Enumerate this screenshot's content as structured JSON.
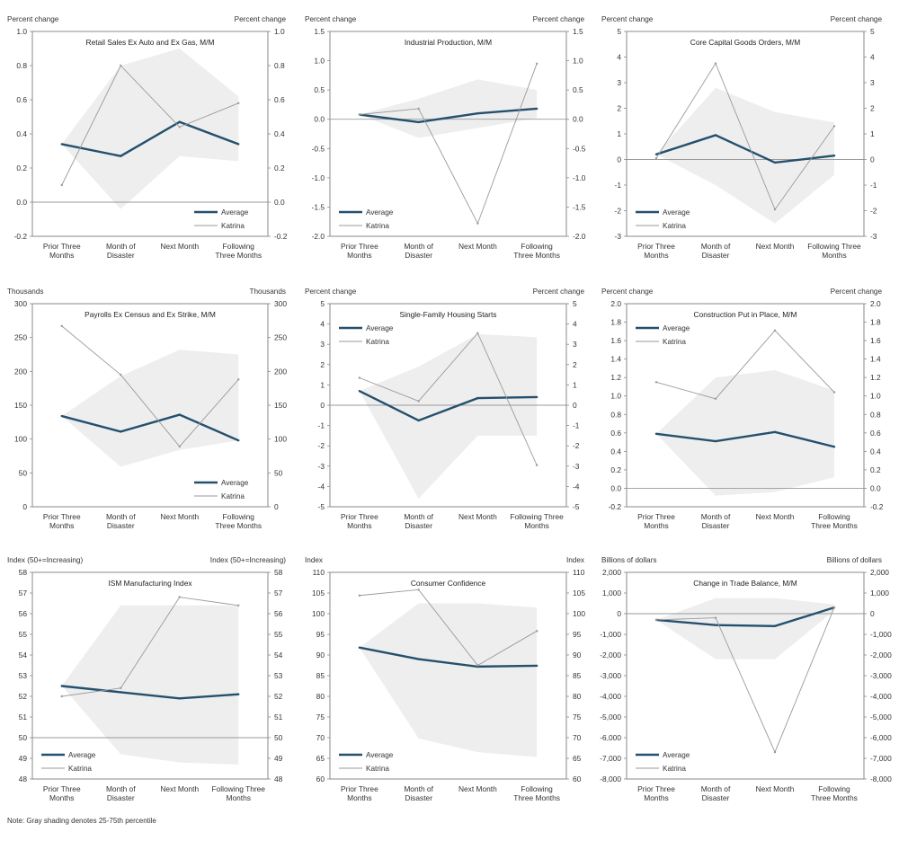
{
  "footnote": "Note: Gray shading denotes 25-75th percentile",
  "legend": {
    "average": "Average",
    "katrina": "Katrina"
  },
  "colors": {
    "average": "#24506e",
    "katrina": "#9a9a9a",
    "shade": "#eeeeee",
    "zero": "#9a9a9a"
  },
  "chart_data": [
    {
      "type": "line",
      "title": "Retail Sales Ex Auto and Ex Gas, M/M",
      "ylabel_left": "Percent change",
      "ylabel_right": "Percent change",
      "categories": [
        "Prior Three\nMonths",
        "Month of\nDisaster",
        "Next Month",
        "Following\nThree Months"
      ],
      "ylim": [
        -0.2,
        1.0
      ],
      "yticks": [
        -0.2,
        0.0,
        0.2,
        0.4,
        0.6,
        0.8,
        1.0
      ],
      "yticklabels": [
        "-0.2",
        "0.0",
        "0.2",
        "0.4",
        "0.6",
        "0.8",
        "1.0"
      ],
      "series": [
        {
          "name": "Average",
          "values": [
            0.34,
            0.27,
            0.47,
            0.34
          ]
        },
        {
          "name": "Katrina",
          "values": [
            0.1,
            0.8,
            0.44,
            0.58
          ]
        }
      ],
      "band": {
        "low": [
          0.34,
          -0.04,
          0.27,
          0.24
        ],
        "high": [
          0.34,
          0.8,
          0.9,
          0.62
        ]
      },
      "legend_position": "bottom-right"
    },
    {
      "type": "line",
      "title": "Industrial Production, M/M",
      "ylabel_left": "Percent change",
      "ylabel_right": "Percent change",
      "categories": [
        "Prior Three\nMonths",
        "Month of\nDisaster",
        "Next Month",
        "Following\nThree Months"
      ],
      "ylim": [
        -2.0,
        1.5
      ],
      "yticks": [
        -2.0,
        -1.5,
        -1.0,
        -0.5,
        0.0,
        0.5,
        1.0,
        1.5
      ],
      "yticklabels": [
        "-2.0",
        "-1.5",
        "-1.0",
        "-0.5",
        "0.0",
        "0.5",
        "1.0",
        "1.5"
      ],
      "series": [
        {
          "name": "Average",
          "values": [
            0.08,
            -0.05,
            0.1,
            0.18
          ]
        },
        {
          "name": "Katrina",
          "values": [
            0.08,
            0.18,
            -1.78,
            0.95
          ]
        }
      ],
      "band": {
        "low": [
          0.08,
          -0.32,
          -0.15,
          0.02
        ],
        "high": [
          0.08,
          0.35,
          0.68,
          0.5
        ]
      },
      "legend_position": "bottom-left"
    },
    {
      "type": "line",
      "title": "Core Capital Goods Orders, M/M",
      "ylabel_left": "Percent change",
      "ylabel_right": "Percent change",
      "categories": [
        "Prior Three\nMonths",
        "Month of\nDisaster",
        "Next Month",
        "Following Three\nMonths"
      ],
      "ylim": [
        -3,
        5
      ],
      "yticks": [
        -3,
        -2,
        -1,
        0,
        1,
        2,
        3,
        4,
        5
      ],
      "yticklabels": [
        "-3",
        "-2",
        "-1",
        "0",
        "1",
        "2",
        "3",
        "4",
        "5"
      ],
      "series": [
        {
          "name": "Average",
          "values": [
            0.2,
            0.95,
            -0.12,
            0.15
          ]
        },
        {
          "name": "Katrina",
          "values": [
            0.05,
            3.75,
            -1.95,
            1.3
          ]
        }
      ],
      "band": {
        "low": [
          0.2,
          -1.0,
          -2.5,
          -0.6
        ],
        "high": [
          0.2,
          2.8,
          1.85,
          1.45
        ]
      },
      "legend_position": "bottom-left"
    },
    {
      "type": "line",
      "title": "Payrolls Ex Census and Ex Strike, M/M",
      "ylabel_left": "Thousands",
      "ylabel_right": "Thousands",
      "categories": [
        "Prior Three\nMonths",
        "Month of\nDisaster",
        "Next Month",
        "Following\nThree Months"
      ],
      "ylim": [
        0,
        300
      ],
      "yticks": [
        0,
        50,
        100,
        150,
        200,
        250,
        300
      ],
      "yticklabels": [
        "0",
        "50",
        "100",
        "150",
        "200",
        "250",
        "300"
      ],
      "series": [
        {
          "name": "Average",
          "values": [
            134,
            111,
            136,
            98
          ]
        },
        {
          "name": "Katrina",
          "values": [
            267,
            195,
            89,
            188
          ]
        }
      ],
      "band": {
        "low": [
          134,
          59,
          84,
          98
        ],
        "high": [
          134,
          193,
          232,
          225
        ]
      },
      "legend_position": "bottom-right"
    },
    {
      "type": "line",
      "title": "Single-Family Housing Starts",
      "ylabel_left": "Percent change",
      "ylabel_right": "Percent change",
      "categories": [
        "Prior Three\nMonths",
        "Month of\nDisaster",
        "Next Month",
        "Following Three\nMonths"
      ],
      "ylim": [
        -5,
        5
      ],
      "yticks": [
        -5,
        -4,
        -3,
        -2,
        -1,
        0,
        1,
        2,
        3,
        4,
        5
      ],
      "yticklabels": [
        "-5",
        "-4",
        "-3",
        "-2",
        "-1",
        "0",
        "1",
        "2",
        "3",
        "4",
        "5"
      ],
      "series": [
        {
          "name": "Average",
          "values": [
            0.7,
            -0.75,
            0.35,
            0.4
          ]
        },
        {
          "name": "Katrina",
          "values": [
            1.35,
            0.2,
            3.55,
            -2.95
          ]
        }
      ],
      "band": {
        "low": [
          0.7,
          -4.6,
          -1.5,
          -1.5
        ],
        "high": [
          0.7,
          1.9,
          3.5,
          3.35
        ]
      },
      "legend_position": "top-left"
    },
    {
      "type": "line",
      "title": "Construction Put in Place, M/M",
      "ylabel_left": "Percent change",
      "ylabel_right": "Percent change",
      "categories": [
        "Prior Three\nMonths",
        "Month of\nDisaster",
        "Next Month",
        "Following\nThree Months"
      ],
      "ylim": [
        -0.2,
        2.0
      ],
      "yticks": [
        -0.2,
        0.0,
        0.2,
        0.4,
        0.6,
        0.8,
        1.0,
        1.2,
        1.4,
        1.6,
        1.8,
        2.0
      ],
      "yticklabels": [
        "-0.2",
        "0.0",
        "0.2",
        "0.4",
        "0.6",
        "0.8",
        "1.0",
        "1.2",
        "1.4",
        "1.6",
        "1.8",
        "2.0"
      ],
      "series": [
        {
          "name": "Average",
          "values": [
            0.59,
            0.51,
            0.61,
            0.45
          ]
        },
        {
          "name": "Katrina",
          "values": [
            1.15,
            0.97,
            1.71,
            1.04
          ]
        }
      ],
      "band": {
        "low": [
          0.59,
          -0.08,
          -0.04,
          0.12
        ],
        "high": [
          0.59,
          1.2,
          1.28,
          1.06
        ]
      },
      "legend_position": "top-left"
    },
    {
      "type": "line",
      "title": "ISM Manufacturing Index",
      "ylabel_left": "Index (50+=Increasing)",
      "ylabel_right": "Index (50+=Increasing)",
      "categories": [
        "Prior Three\nMonths",
        "Month of\nDisaster",
        "Next Month",
        "Following Three\nMonths"
      ],
      "ylim": [
        48,
        58
      ],
      "yticks": [
        48,
        49,
        50,
        51,
        52,
        53,
        54,
        55,
        56,
        57,
        58
      ],
      "yticklabels": [
        "48",
        "49",
        "50",
        "51",
        "52",
        "53",
        "54",
        "55",
        "56",
        "57",
        "58"
      ],
      "series": [
        {
          "name": "Average",
          "values": [
            52.5,
            52.2,
            51.9,
            52.1
          ]
        },
        {
          "name": "Katrina",
          "values": [
            52.0,
            52.4,
            56.8,
            56.4
          ]
        }
      ],
      "band": {
        "low": [
          52.5,
          49.2,
          48.8,
          48.7
        ],
        "high": [
          52.5,
          56.4,
          56.4,
          56.4
        ]
      },
      "hline": 50,
      "legend_position": "bottom-left"
    },
    {
      "type": "line",
      "title": "Consumer Confidence",
      "ylabel_left": "Index",
      "ylabel_right": "Index",
      "categories": [
        "Prior Three\nMonths",
        "Month of\nDisaster",
        "Next Month",
        "Following\nThree Months"
      ],
      "ylim": [
        60,
        110
      ],
      "yticks": [
        60,
        65,
        70,
        75,
        80,
        85,
        90,
        95,
        100,
        105,
        110
      ],
      "yticklabels": [
        "60",
        "65",
        "70",
        "75",
        "80",
        "85",
        "90",
        "95",
        "100",
        "105",
        "110"
      ],
      "series": [
        {
          "name": "Average",
          "values": [
            91.8,
            89.0,
            87.2,
            87.4
          ]
        },
        {
          "name": "Katrina",
          "values": [
            104.4,
            105.8,
            87.5,
            95.8
          ]
        }
      ],
      "band": {
        "low": [
          91.8,
          69.8,
          66.5,
          65.3
        ],
        "high": [
          91.8,
          102.5,
          102.5,
          101.5
        ]
      },
      "legend_position": "bottom-left"
    },
    {
      "type": "line",
      "title": "Change in Trade Balance, M/M",
      "ylabel_left": "Billions of dollars",
      "ylabel_right": "Billions of dollars",
      "categories": [
        "Prior Three\nMonths",
        "Month of\nDisaster",
        "Next Month",
        "Following\nThree Months"
      ],
      "ylim": [
        -8000,
        2000
      ],
      "yticks": [
        -8000,
        -7000,
        -6000,
        -5000,
        -4000,
        -3000,
        -2000,
        -1000,
        0,
        1000,
        2000
      ],
      "yticklabels": [
        "-8,000",
        "-7,000",
        "-6,000",
        "-5,000",
        "-4,000",
        "-3,000",
        "-2,000",
        "-1,000",
        "0",
        "1,000",
        "2,000"
      ],
      "series": [
        {
          "name": "Average",
          "values": [
            -300,
            -550,
            -600,
            300
          ]
        },
        {
          "name": "Katrina",
          "values": [
            -300,
            -200,
            -6700,
            300
          ]
        }
      ],
      "band": {
        "low": [
          -300,
          -2200,
          -2200,
          150
        ],
        "high": [
          -300,
          750,
          750,
          450
        ]
      },
      "legend_position": "bottom-left"
    }
  ]
}
